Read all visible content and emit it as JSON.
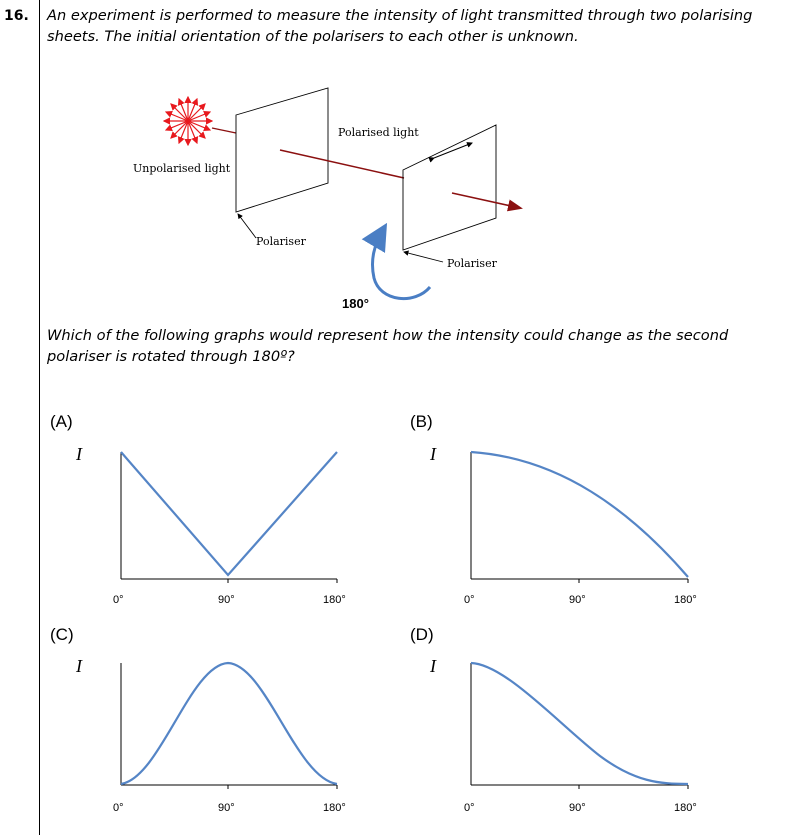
{
  "question": {
    "number": "16.",
    "intro": "An experiment is performed to measure the intensity of light transmitted through two polarising sheets. The initial orientation of the polarisers to each other is unknown.",
    "prompt": "Which of the following graphs would represent how the intensity could change as the second polariser is rotated through 180º?"
  },
  "diagram": {
    "unpolarised_label": "Unpolarised light",
    "polarised_label": "Polarised light",
    "polariser1_label": "Polariser",
    "polariser2_label": "Polariser",
    "rotation_label": "180°",
    "colors": {
      "light": "#e8191e",
      "beam": "#8b1010",
      "rotation_arrow": "#4a7ec4"
    }
  },
  "graphs": {
    "axis_symbol": "I",
    "curve_color": "#5585c6",
    "ticks": [
      "0°",
      "90°",
      "180°"
    ],
    "options": [
      {
        "label": "(A)",
        "shape": "V: |cos| decreasing to 0 at 90° then rising",
        "x_deg": [
          0,
          90,
          180
        ],
        "y_rel": [
          1,
          0,
          1
        ]
      },
      {
        "label": "(B)",
        "shape": "cos(θ/2): max at 0°, zero at 180°",
        "x_deg": [
          0,
          90,
          180
        ],
        "y_rel": [
          1,
          0.71,
          0
        ]
      },
      {
        "label": "(C)",
        "shape": "sin²θ: zero at 0°, max at 90°, zero at 180°",
        "x_deg": [
          0,
          90,
          180
        ],
        "y_rel": [
          0,
          1,
          0
        ]
      },
      {
        "label": "(D)",
        "shape": "cos²(θ/2): max at 0°, zero at 180°",
        "x_deg": [
          0,
          90,
          180
        ],
        "y_rel": [
          1,
          0.5,
          0
        ]
      }
    ]
  }
}
